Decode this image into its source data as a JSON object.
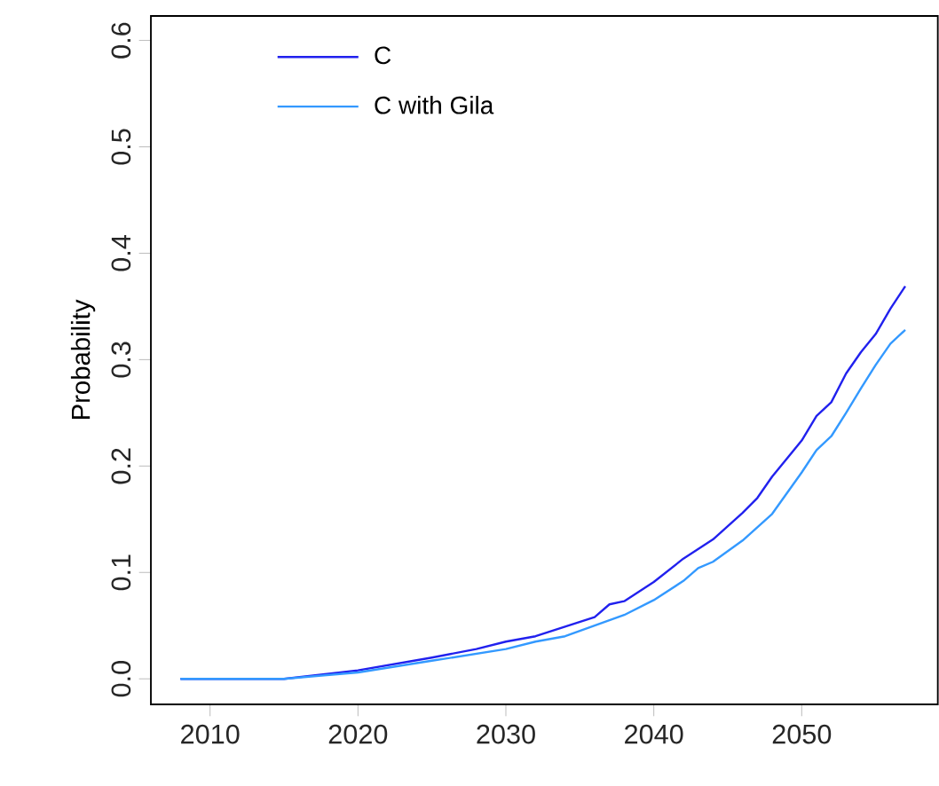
{
  "chart_data": {
    "type": "line",
    "ylabel": "Probability",
    "xlim": [
      2006,
      2059.2
    ],
    "ylim": [
      -0.024,
      0.623
    ],
    "xticks": [
      2010,
      2020,
      2030,
      2040,
      2050
    ],
    "yticks": [
      {
        "value": 0,
        "label": "0.0"
      },
      {
        "value": 0.1,
        "label": "0.1"
      },
      {
        "value": 0.2,
        "label": "0.2"
      },
      {
        "value": 0.3,
        "label": "0.3"
      },
      {
        "value": 0.4,
        "label": "0.4"
      },
      {
        "value": 0.5,
        "label": "0.5"
      },
      {
        "value": 0.6,
        "label": "0.6"
      }
    ],
    "legend": "top left",
    "grid": false,
    "marker": "none",
    "line_style": "solid",
    "series": [
      {
        "name": "C",
        "color": "#2121ee",
        "x": [
          2008,
          2015,
          2020,
          2025,
          2028,
          2030,
          2032,
          2034,
          2036,
          2037,
          2038,
          2040,
          2042,
          2044,
          2046,
          2047,
          2048,
          2050,
          2051,
          2052,
          2053,
          2054,
          2055,
          2056,
          2057
        ],
        "values": [
          0,
          0,
          0.008,
          0.02,
          0.028,
          0.035,
          0.04,
          0.049,
          0.058,
          0.07,
          0.073,
          0.091,
          0.113,
          0.131,
          0.156,
          0.17,
          0.19,
          0.224,
          0.247,
          0.26,
          0.287,
          0.307,
          0.324,
          0.348,
          0.369
        ]
      },
      {
        "name": "C with Gila",
        "color": "#3399ff",
        "x": [
          2008,
          2015,
          2020,
          2025,
          2030,
          2032,
          2034,
          2036,
          2038,
          2040,
          2042,
          2043,
          2044,
          2046,
          2048,
          2050,
          2051,
          2052,
          2053,
          2054,
          2055,
          2056,
          2057
        ],
        "values": [
          0,
          0,
          0.006,
          0.017,
          0.028,
          0.035,
          0.04,
          0.05,
          0.06,
          0.074,
          0.092,
          0.104,
          0.11,
          0.13,
          0.155,
          0.194,
          0.215,
          0.228,
          0.25,
          0.273,
          0.295,
          0.315,
          0.328
        ]
      }
    ]
  }
}
